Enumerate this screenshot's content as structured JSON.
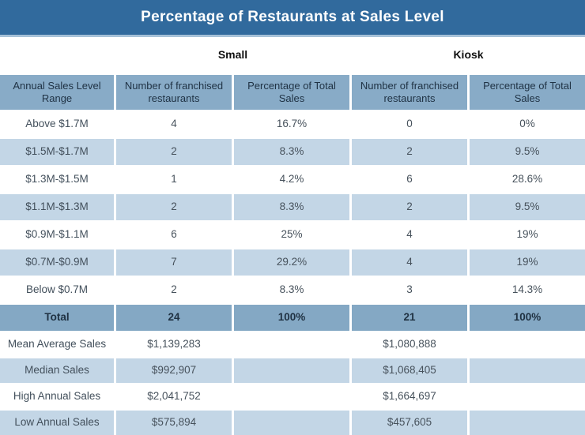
{
  "groups": {
    "small": "Small",
    "kiosk": "Kiosk"
  },
  "colors": {
    "title_bar": "#316A9D",
    "title_underline": "#A6C1D8",
    "header_row": "#88ABC7",
    "alt_row": "#C3D6E6",
    "total_row": "#84A8C4",
    "title_text": "#FFFFFF",
    "header_text": "#203345",
    "body_text": "#47525C"
  },
  "chart_data": {
    "type": "table",
    "title": "Percentage of Restaurants at Sales Level",
    "column_groups": [
      "",
      "Small",
      "Small",
      "Kiosk",
      "Kiosk"
    ],
    "columns": [
      "Annual Sales Level Range",
      "Number of franchised restaurants",
      "Percentage of Total Sales",
      "Number of franchised restaurants",
      "Percentage of Total Sales"
    ],
    "rows": [
      [
        "Above $1.7M",
        4,
        "16.7%",
        0,
        "0%"
      ],
      [
        "$1.5M-$1.7M",
        2,
        "8.3%",
        2,
        "9.5%"
      ],
      [
        "$1.3M-$1.5M",
        1,
        "4.2%",
        6,
        "28.6%"
      ],
      [
        "$1.1M-$1.3M",
        2,
        "8.3%",
        2,
        "9.5%"
      ],
      [
        "$0.9M-$1.1M",
        6,
        "25%",
        4,
        "19%"
      ],
      [
        "$0.7M-$0.9M",
        7,
        "29.2%",
        4,
        "19%"
      ],
      [
        "Below $0.7M",
        2,
        "8.3%",
        3,
        "14.3%"
      ],
      [
        "Total",
        24,
        "100%",
        21,
        "100%"
      ],
      [
        "Mean Average Sales",
        "$1,139,283",
        "",
        "$1,080,888",
        ""
      ],
      [
        "Median Sales",
        "$992,907",
        "",
        "$1,068,405",
        ""
      ],
      [
        "High Annual Sales",
        "$2,041,752",
        "",
        "$1,664,697",
        ""
      ],
      [
        "Low Annual Sales",
        "$575,894",
        "",
        "$457,605",
        ""
      ]
    ]
  }
}
